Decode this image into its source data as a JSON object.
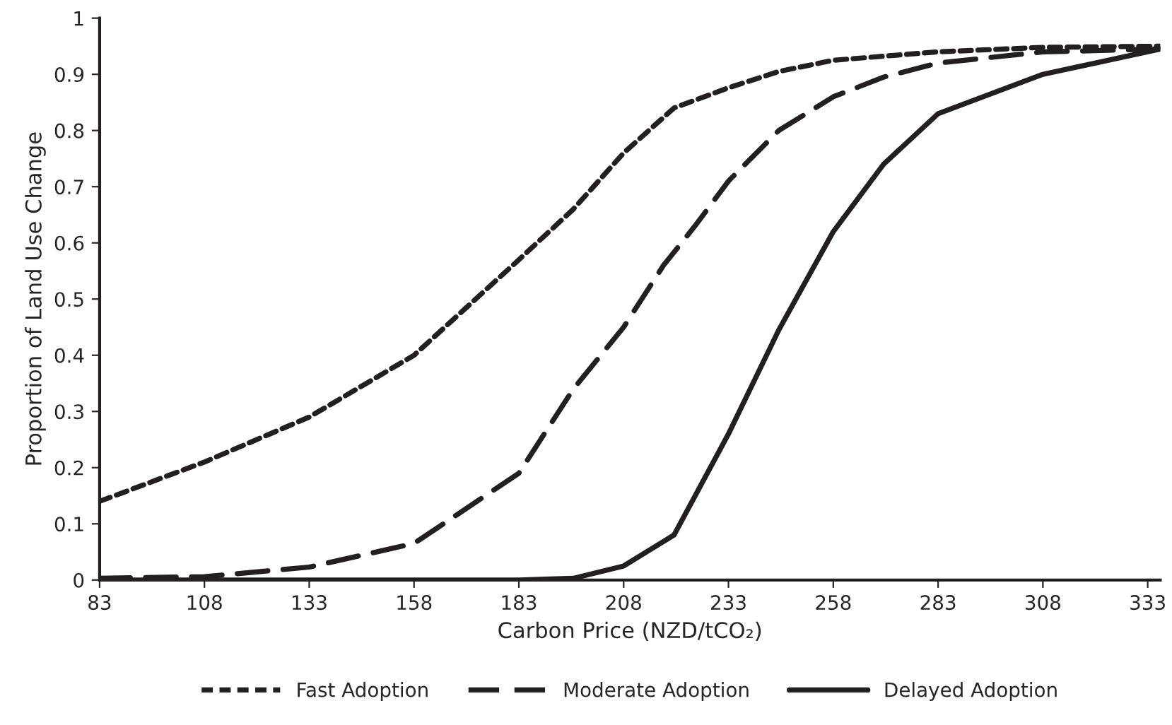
{
  "chart_data": {
    "type": "line",
    "xlabel": "Carbon Price (NZD/tCO₂)",
    "ylabel": "Proportion of Land Use Change",
    "xlim": [
      83,
      336
    ],
    "xticks": [
      83,
      108,
      133,
      158,
      183,
      208,
      233,
      258,
      283,
      308,
      333
    ],
    "ylim": [
      0,
      1
    ],
    "yticks": [
      0,
      0.1,
      0.2,
      0.3,
      0.4,
      0.5,
      0.6,
      0.7,
      0.8,
      0.9,
      1
    ],
    "legend": "bottom",
    "marker": "none",
    "series": [
      {
        "name": "Fast Adoption",
        "color": "#231f20",
        "line_style": "dotted",
        "x": [
          83,
          108,
          133,
          158,
          183,
          196,
          208,
          220,
          233,
          245,
          258,
          283,
          308,
          336
        ],
        "values": [
          0.14,
          0.21,
          0.29,
          0.4,
          0.57,
          0.66,
          0.76,
          0.84,
          0.876,
          0.905,
          0.925,
          0.94,
          0.948,
          0.95
        ]
      },
      {
        "name": "Moderate Adoption",
        "color": "#231f20",
        "line_style": "dashed",
        "x": [
          83,
          108,
          133,
          158,
          183,
          196,
          208,
          217.5,
          225,
          233,
          245,
          258,
          270,
          283,
          308,
          336
        ],
        "values": [
          0.003,
          0.006,
          0.023,
          0.065,
          0.19,
          0.34,
          0.45,
          0.56,
          0.63,
          0.71,
          0.8,
          0.86,
          0.895,
          0.92,
          0.94,
          0.945
        ]
      },
      {
        "name": "Delayed Adoption",
        "color": "#231f20",
        "line_style": "solid",
        "x": [
          83,
          133,
          183,
          196,
          208,
          220,
          233,
          245,
          258,
          270,
          283,
          308,
          336
        ],
        "values": [
          0,
          0,
          0,
          0.003,
          0.025,
          0.08,
          0.26,
          0.445,
          0.62,
          0.74,
          0.83,
          0.9,
          0.945
        ]
      }
    ]
  }
}
